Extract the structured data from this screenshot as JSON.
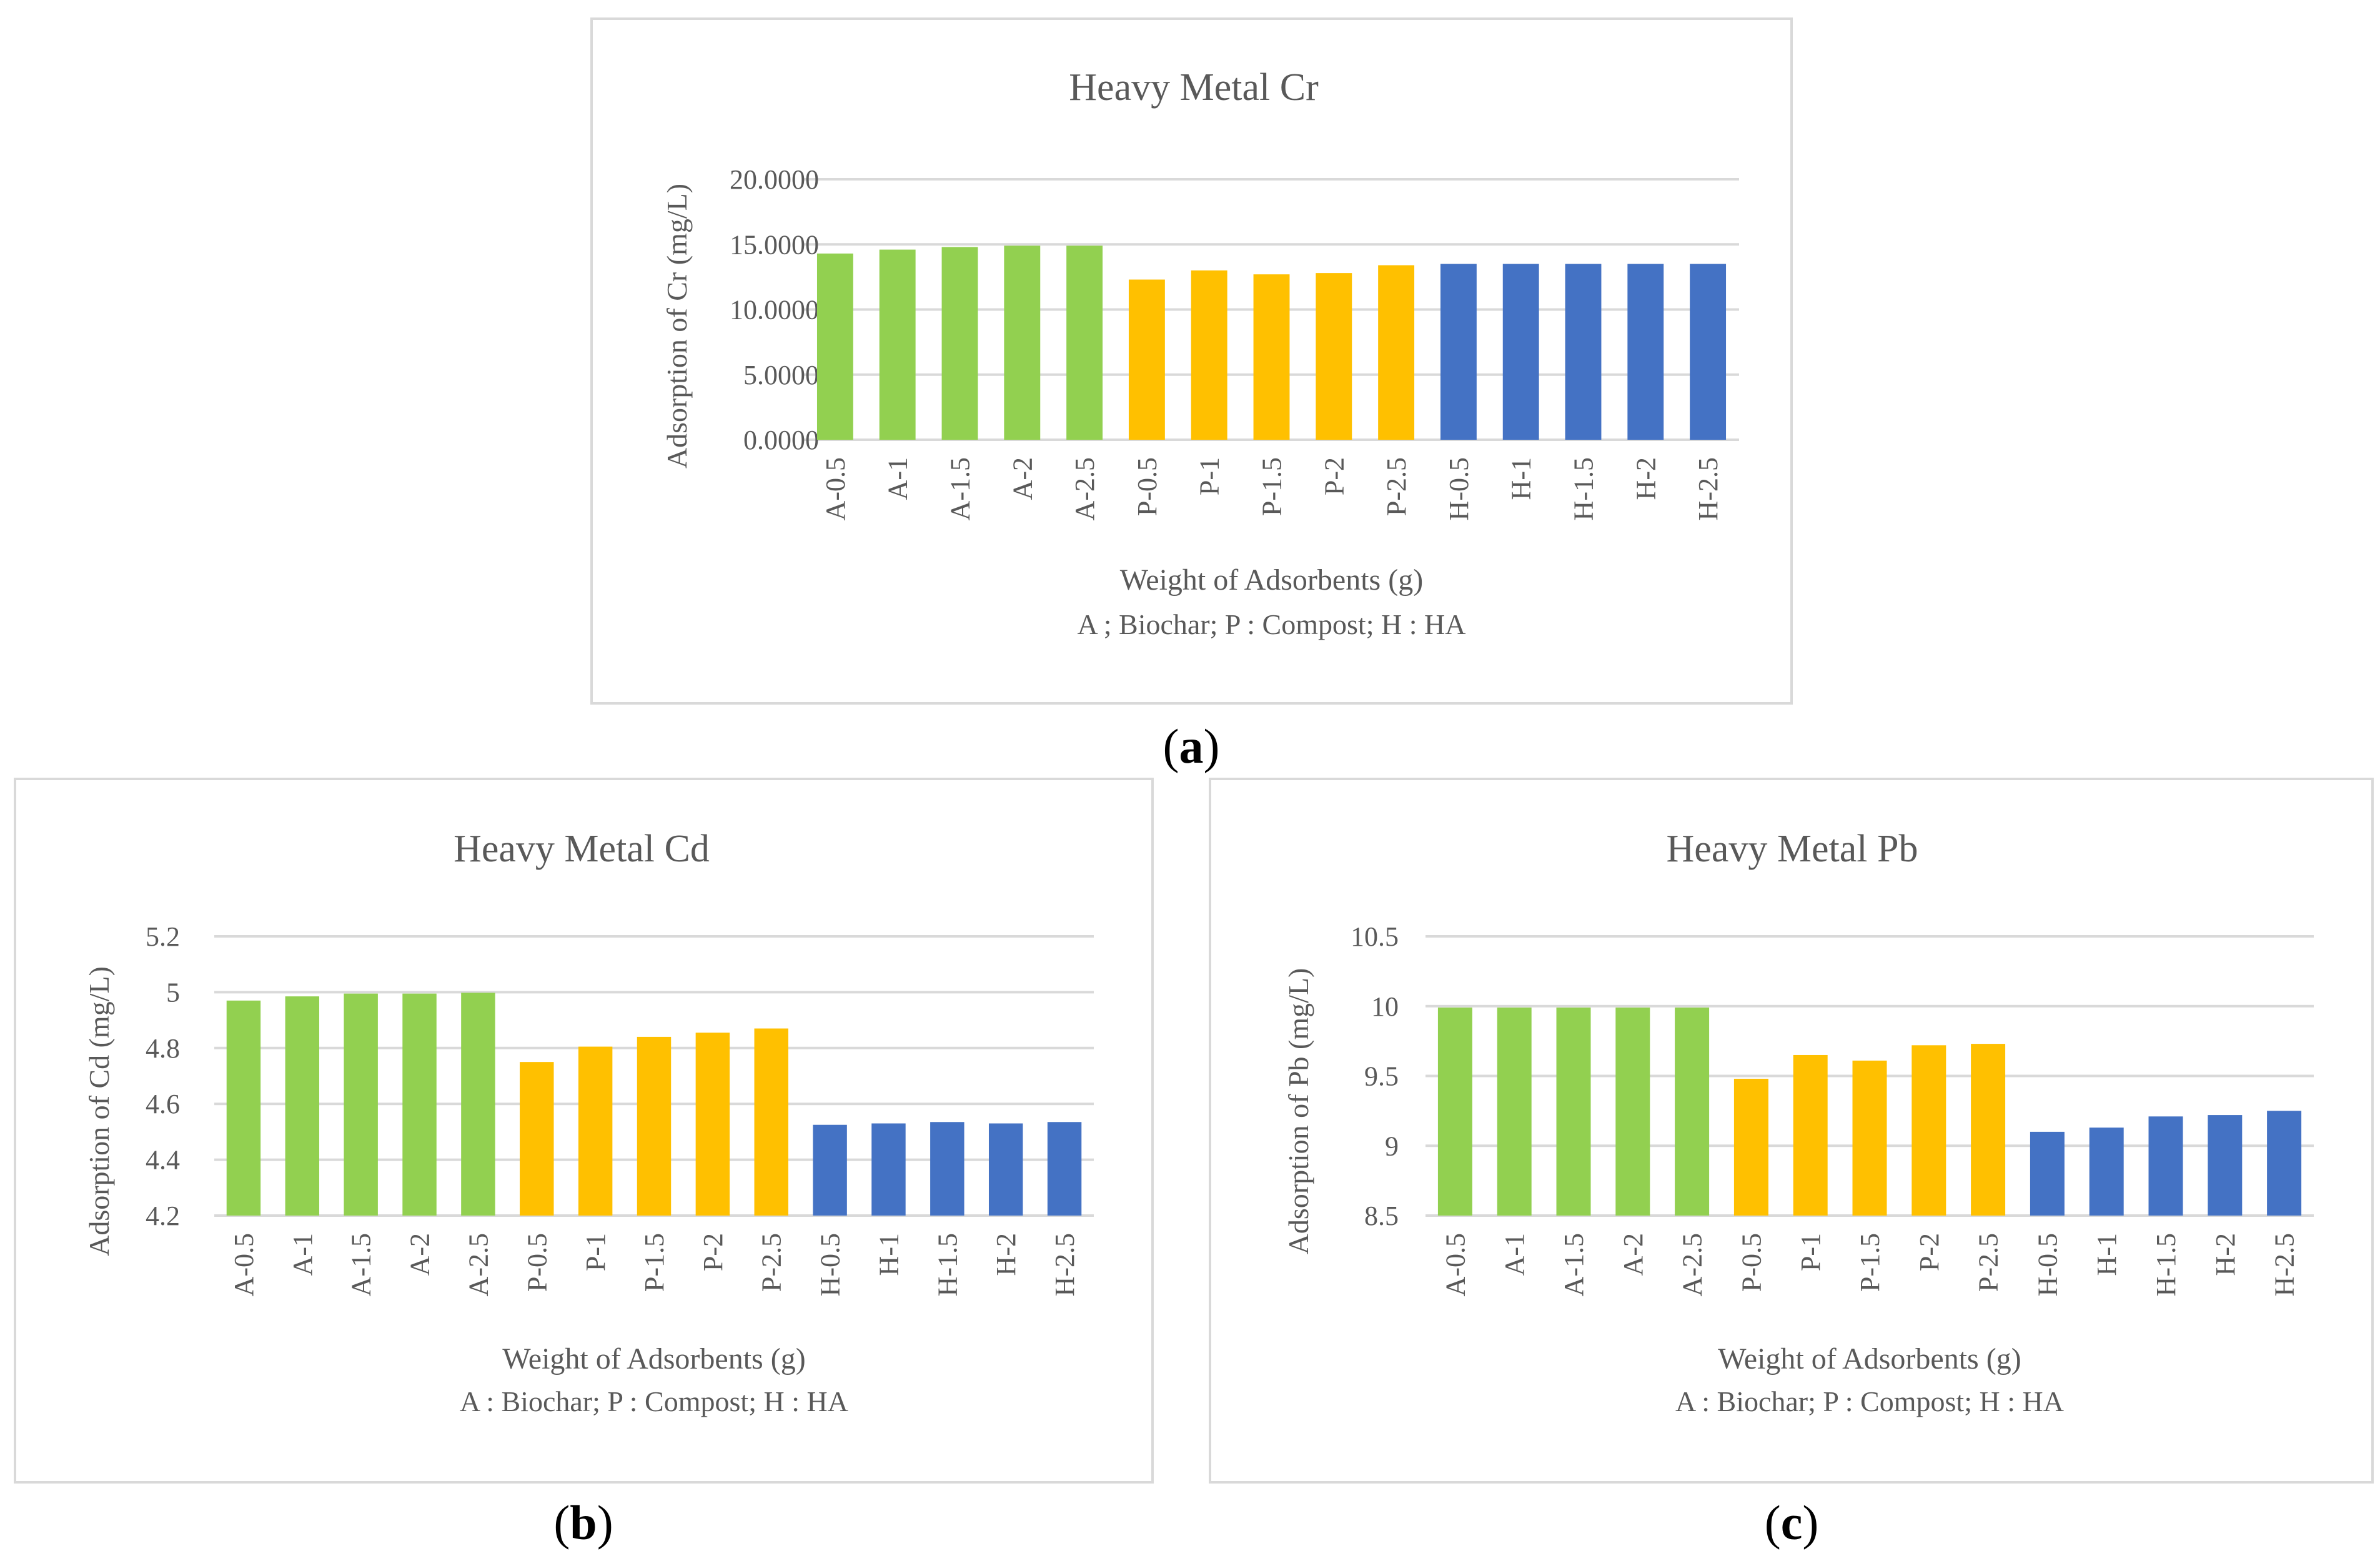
{
  "chart_data": [
    {
      "type": "bar",
      "panel": "a",
      "title": "Heavy Metal Cr",
      "xlabel": "Weight of Adsorbents (g)",
      "note": "A ; Biochar; P : Compost; H : HA",
      "ylabel": "Adsorption of Cr (mg/L)",
      "ylim": [
        0,
        20
      ],
      "yticks": [
        0,
        5,
        10,
        15,
        20
      ],
      "ytick_labels": [
        "0.0000",
        "5.0000",
        "10.0000",
        "15.0000",
        "20.0000"
      ],
      "grid": true,
      "categories": [
        "A-0.5",
        "A-1",
        "A-1.5",
        "A-2",
        "A-2.5",
        "P-0.5",
        "P-1",
        "P-1.5",
        "P-2",
        "P-2.5",
        "H-0.5",
        "H-1",
        "H-1.5",
        "H-2",
        "H-2.5"
      ],
      "values": [
        14.3,
        14.6,
        14.8,
        14.9,
        14.9,
        12.3,
        13.0,
        12.7,
        12.8,
        13.4,
        13.5,
        13.5,
        13.5,
        13.5,
        13.5
      ]
    },
    {
      "type": "bar",
      "panel": "b",
      "title": "Heavy Metal Cd",
      "xlabel": "Weight of Adsorbents (g)",
      "note": "A : Biochar; P : Compost; H : HA",
      "ylabel": "Adsorption of Cd (mg/L)",
      "ylim": [
        4.2,
        5.2
      ],
      "yticks": [
        4.2,
        4.4,
        4.6,
        4.8,
        5.0,
        5.2
      ],
      "ytick_labels": [
        "4.2",
        "4.4",
        "4.6",
        "4.8",
        "5",
        "5.2"
      ],
      "grid": true,
      "categories": [
        "A-0.5",
        "A-1",
        "A-1.5",
        "A-2",
        "A-2.5",
        "P-0.5",
        "P-1",
        "P-1.5",
        "P-2",
        "P-2.5",
        "H-0.5",
        "H-1",
        "H-1.5",
        "H-2",
        "H-2.5"
      ],
      "values": [
        4.97,
        4.985,
        4.995,
        4.995,
        4.998,
        4.75,
        4.805,
        4.84,
        4.855,
        4.87,
        4.525,
        4.53,
        4.535,
        4.53,
        4.535
      ]
    },
    {
      "type": "bar",
      "panel": "c",
      "title": "Heavy Metal Pb",
      "xlabel": "Weight of Adsorbents (g)",
      "note": "A : Biochar; P : Compost; H : HA",
      "ylabel": "Adsorption of Pb (mg/L)",
      "ylim": [
        8.5,
        10.5
      ],
      "yticks": [
        8.5,
        9.0,
        9.5,
        10.0,
        10.5
      ],
      "ytick_labels": [
        "8.5",
        "9",
        "9.5",
        "10",
        "10.5"
      ],
      "grid": true,
      "categories": [
        "A-0.5",
        "A-1",
        "A-1.5",
        "A-2",
        "A-2.5",
        "P-0.5",
        "P-1",
        "P-1.5",
        "P-2",
        "P-2.5",
        "H-0.5",
        "H-1",
        "H-1.5",
        "H-2",
        "H-2.5"
      ],
      "values": [
        9.99,
        9.99,
        9.99,
        9.99,
        9.99,
        9.48,
        9.65,
        9.61,
        9.72,
        9.73,
        9.1,
        9.13,
        9.21,
        9.22,
        9.25
      ]
    }
  ],
  "group_colors": {
    "A": "#92d050",
    "P": "#ffc000",
    "H": "#4472c4"
  },
  "gridline_color": "#d9d9d9",
  "captions": {
    "a": "a",
    "b": "b",
    "c": "c"
  }
}
